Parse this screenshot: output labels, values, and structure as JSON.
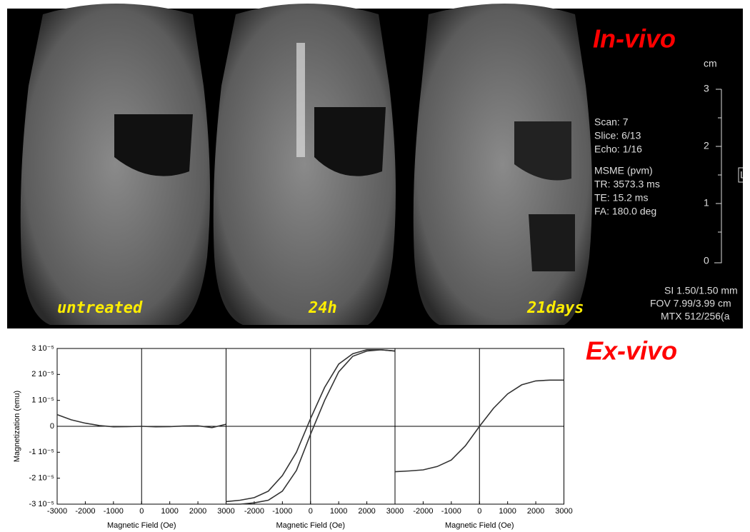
{
  "mri": {
    "title": "In-vivo",
    "labels": [
      "untreated",
      "24h",
      "21days"
    ],
    "scale_unit": "cm",
    "scale_ticks": [
      "3",
      "2",
      "1",
      "0"
    ],
    "scan_info": [
      "Scan: 7",
      "Slice: 6/13",
      "Echo: 1/16"
    ],
    "sequence_info": [
      "MSME (pvm)",
      "TR: 3573.3 ms",
      "TE: 15.2 ms",
      "FA: 180.0 deg"
    ],
    "orientation": "L",
    "footer": [
      "SI 1.50/1.50 mm",
      "FOV 7.99/3.99 cm",
      "MTX 512/256(a"
    ]
  },
  "ex_vivo_title": "Ex-vivo",
  "chart_data": [
    {
      "type": "line",
      "xlabel": "Magnetic Field (Oe)",
      "ylabel": "Magnetization (emu)",
      "x": [
        -3000,
        -2500,
        -2000,
        -1500,
        -1000,
        -500,
        0,
        500,
        1000,
        1500,
        2000,
        2500,
        3000
      ],
      "series": [
        {
          "color": "#333333",
          "values": [
            4.5e-06,
            2.5e-06,
            1.2e-06,
            3e-07,
            -2e-07,
            -1e-07,
            0,
            -2e-07,
            -1e-07,
            1e-07,
            2e-07,
            -5e-07,
            8e-07
          ]
        }
      ],
      "xlim": [
        -3000,
        3000
      ],
      "ylim": [
        -3e-05,
        3e-05
      ],
      "xticks": [
        -3000,
        -2000,
        -1000,
        0,
        1000,
        2000,
        3000
      ],
      "yticks": [
        {
          "value": 3e-05,
          "label": "3 10⁻⁵"
        },
        {
          "value": 2e-05,
          "label": "2 10⁻⁵"
        },
        {
          "value": 1e-05,
          "label": "1 10⁻⁵"
        },
        0,
        {
          "value": -1e-05,
          "label": "-1 10⁻⁵"
        },
        {
          "value": -2e-05,
          "label": "-2 10⁻⁵"
        },
        {
          "value": -3e-05,
          "label": "-3 10⁻⁵"
        }
      ]
    },
    {
      "type": "line",
      "xlabel": "Magnetic Field (Oe)",
      "x": [
        -3000,
        -2500,
        -2000,
        -1500,
        -1000,
        -500,
        0,
        500,
        1000,
        1500,
        2000,
        2500,
        3000
      ],
      "series": [
        {
          "color": "#333333",
          "values": [
            -2.9e-05,
            -2.85e-05,
            -2.75e-05,
            -2.5e-05,
            -1.9e-05,
            -1e-05,
            3e-06,
            1.5e-05,
            2.4e-05,
            2.8e-05,
            2.95e-05,
            2.95e-05,
            2.9e-05
          ]
        },
        {
          "color": "#333333",
          "values": [
            -3e-05,
            -3e-05,
            -2.95e-05,
            -2.85e-05,
            -2.5e-05,
            -1.7e-05,
            -3e-06,
            1e-05,
            2.1e-05,
            2.7e-05,
            2.9e-05,
            2.95e-05,
            2.9e-05
          ]
        }
      ],
      "xlim": [
        -3000,
        3000
      ],
      "ylim": [
        -3e-05,
        3e-05
      ],
      "xticks": [
        -2000,
        -1000,
        0,
        1000,
        2000,
        3000
      ]
    },
    {
      "type": "line",
      "xlabel": "Magnetic Field (Oe)",
      "x": [
        -3000,
        -2500,
        -2000,
        -1500,
        -1000,
        -500,
        0,
        500,
        1000,
        1500,
        2000,
        2500,
        3000
      ],
      "series": [
        {
          "color": "#333333",
          "values": [
            -1.75e-05,
            -1.72e-05,
            -1.68e-05,
            -1.55e-05,
            -1.3e-05,
            -7.5e-06,
            0,
            7e-06,
            1.25e-05,
            1.6e-05,
            1.75e-05,
            1.78e-05,
            1.78e-05
          ]
        }
      ],
      "xlim": [
        -3000,
        3000
      ],
      "ylim": [
        -3e-05,
        3e-05
      ],
      "xticks": [
        -2000,
        -1000,
        0,
        1000,
        2000,
        3000
      ]
    }
  ]
}
